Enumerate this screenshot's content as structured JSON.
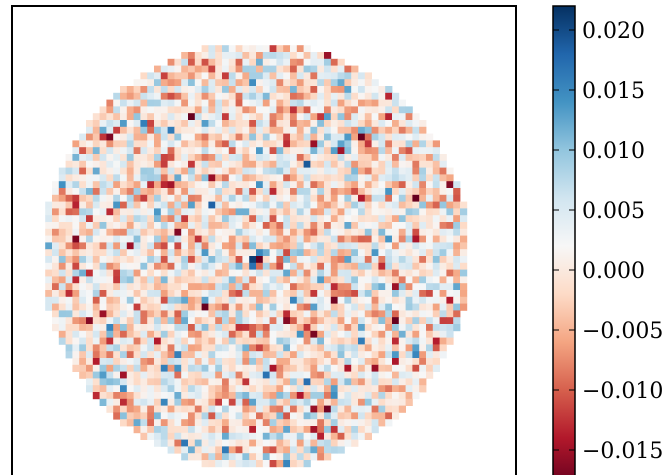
{
  "chart_data": {
    "type": "heatmap",
    "title": "",
    "xlabel": "",
    "ylabel": "",
    "grid": false,
    "grid_size": 64,
    "mask": "circle",
    "colormap": "RdBu",
    "colormap_stops": [
      "#67001f",
      "#b2182b",
      "#d6604d",
      "#f4a582",
      "#fddbc7",
      "#f7f7f7",
      "#d1e5f0",
      "#92c5de",
      "#4393c3",
      "#2166ac",
      "#053061"
    ],
    "clim": [
      -0.018,
      0.022
    ],
    "value_range_observed": [
      -0.018,
      0.022
    ],
    "notable_features": [
      {
        "description": "strong negative center pixel",
        "value": -0.018
      },
      {
        "description": "strong positive neighbor pixel",
        "value": 0.021
      }
    ],
    "colorbar": {
      "ticks": [
        0.02,
        0.015,
        0.01,
        0.005,
        0.0,
        -0.005,
        -0.01,
        -0.015
      ],
      "tick_labels": [
        "0.020",
        "0.015",
        "0.010",
        "0.005",
        "0.000",
        "−0.005",
        "−0.010",
        "−0.015"
      ]
    }
  }
}
